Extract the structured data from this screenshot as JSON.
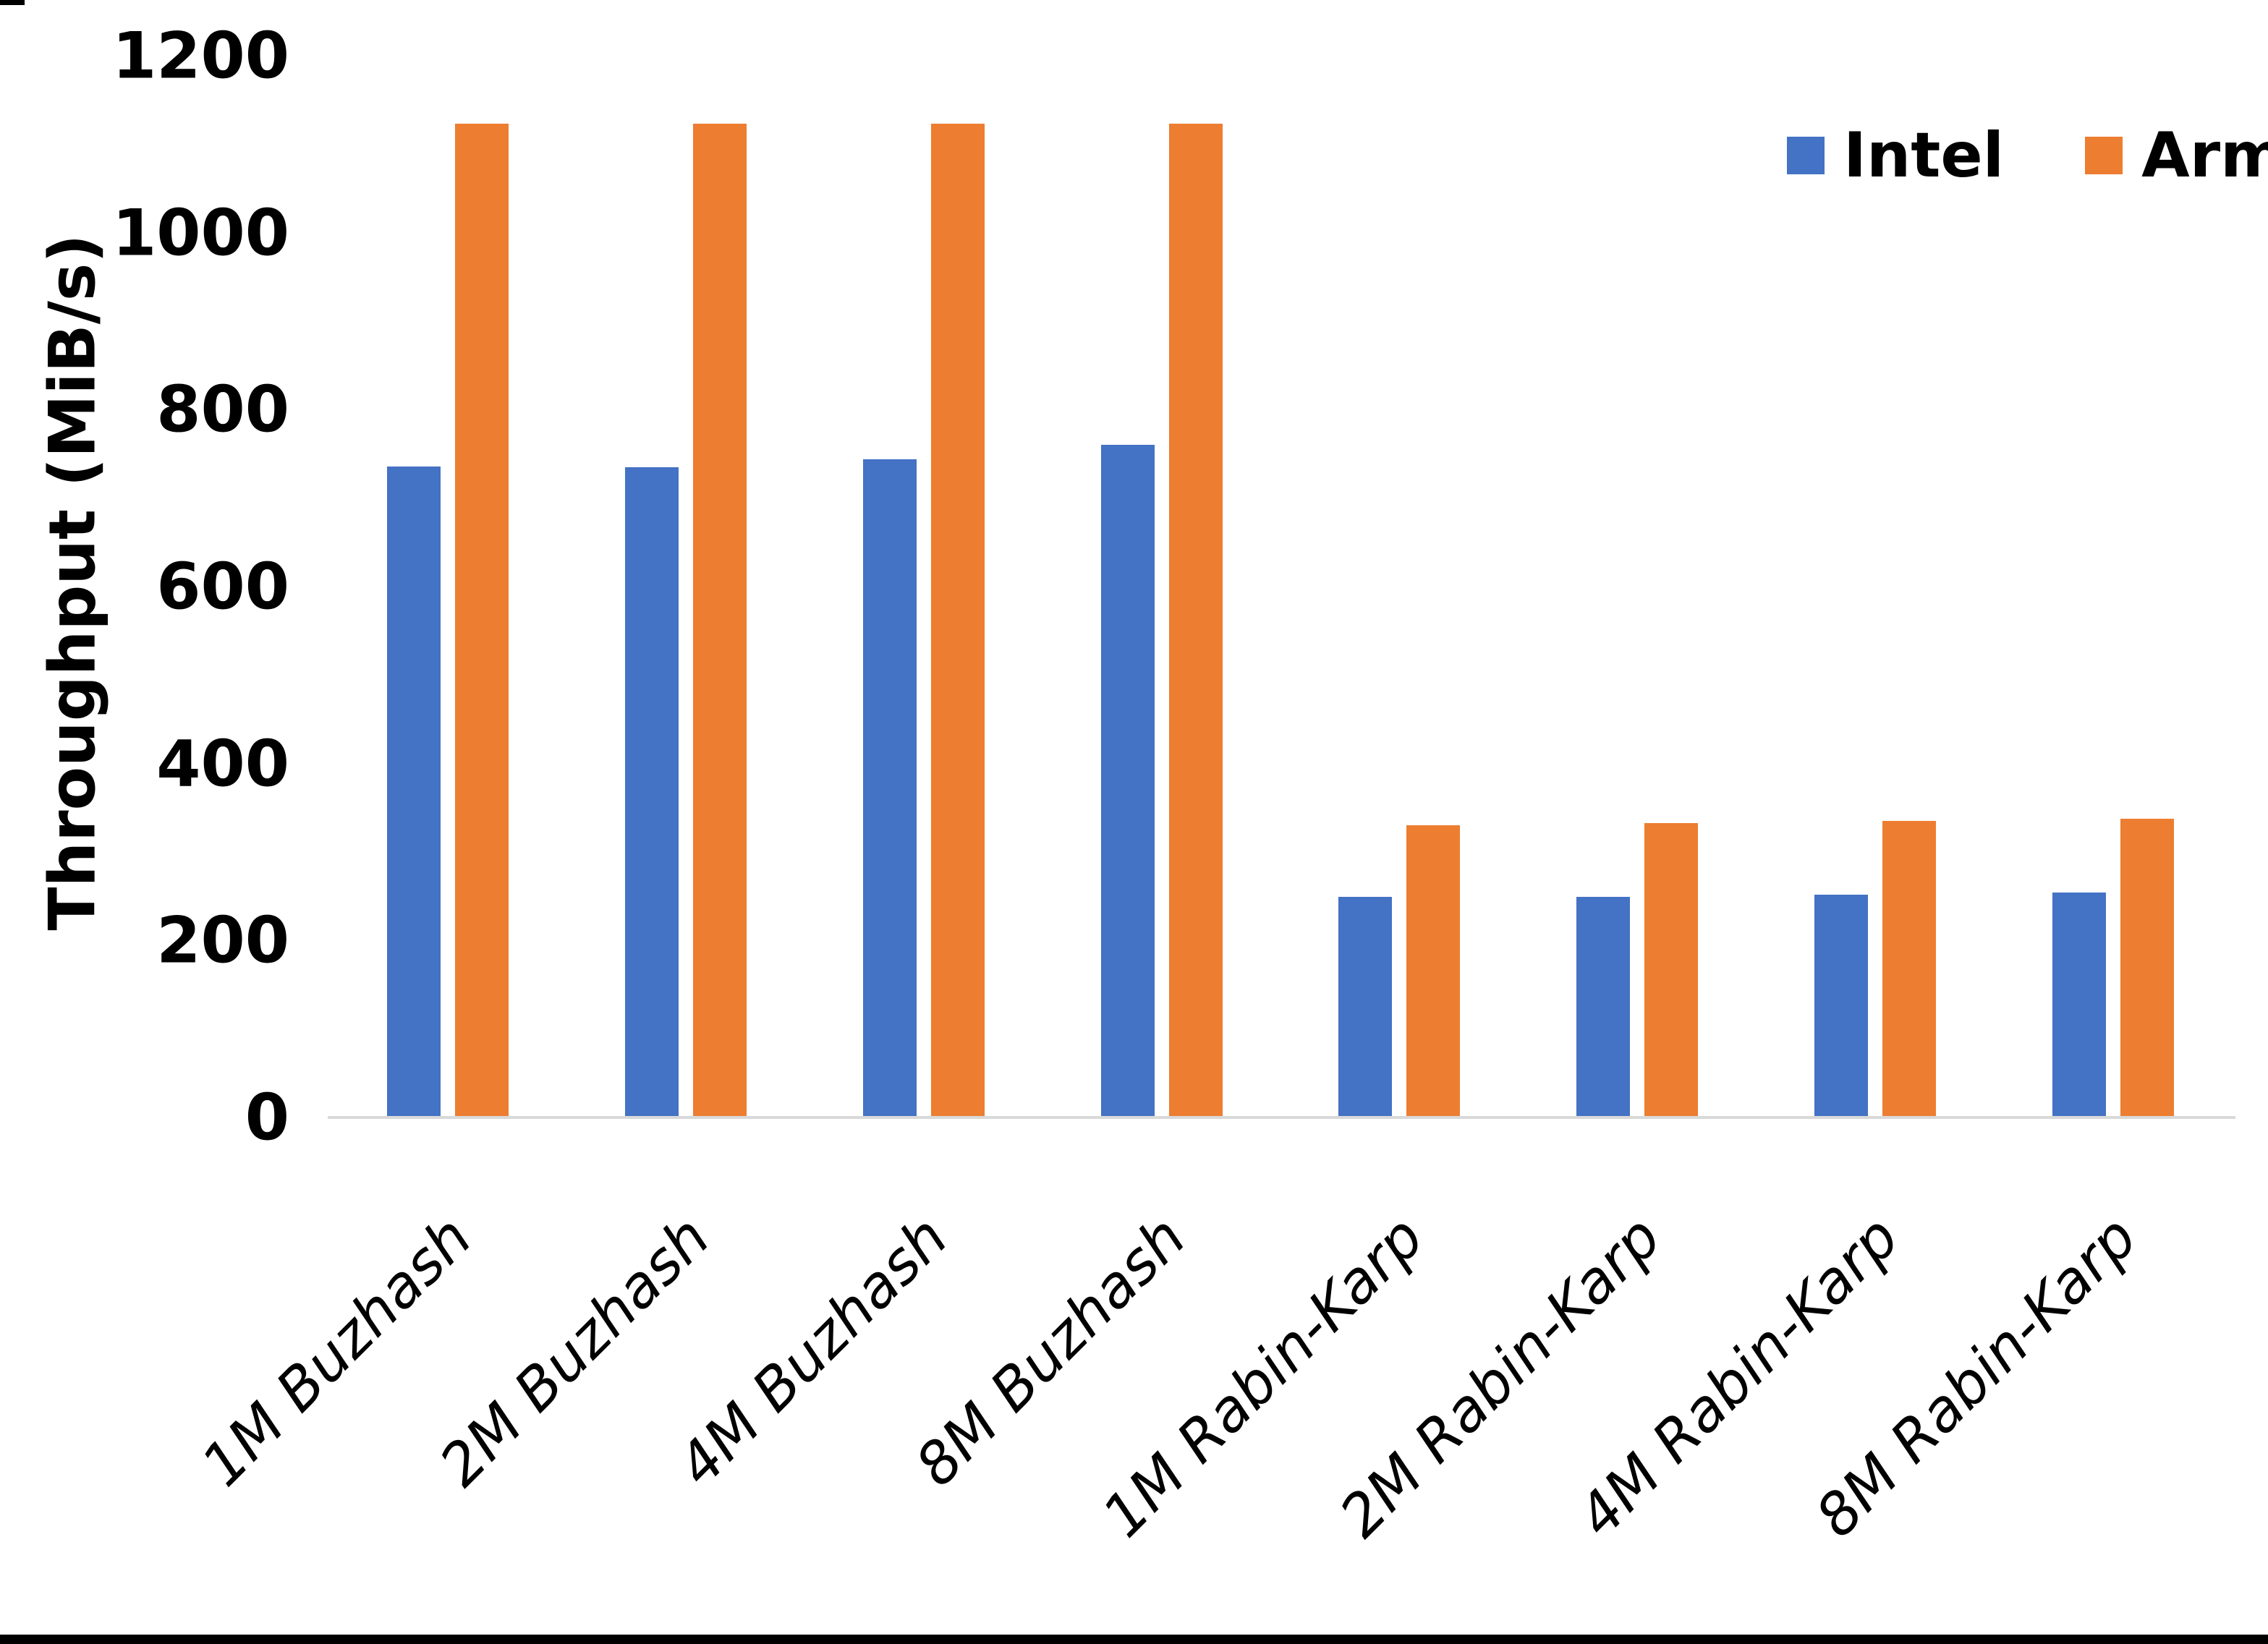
{
  "chart_data": {
    "type": "bar",
    "title": "",
    "xlabel": "",
    "ylabel": "Throughput (MiB/s)",
    "ylim": [
      0,
      1200
    ],
    "yticks": [
      0,
      200,
      400,
      600,
      800,
      1000,
      1200
    ],
    "grid": false,
    "legend_position": "top-right",
    "categories": [
      "1M Buzhash",
      "2M Buzhash",
      "4M Buzhash",
      "8M Buzhash",
      "1M Rabin-Karp",
      "2M Rabin-Karp",
      "4M Rabin-Karp",
      "8M Rabin-Karp"
    ],
    "series": [
      {
        "name": "Intel",
        "color": "#4472C4",
        "values": [
          736,
          735,
          744,
          760,
          249,
          249,
          252,
          254
        ]
      },
      {
        "name": "Arm",
        "color": "#ED7D31",
        "values": [
          1123,
          1123,
          1123,
          1123,
          330,
          333,
          335,
          338
        ]
      }
    ]
  },
  "axis": {
    "line_color": "#D9D9D9",
    "text_color": "#000000"
  },
  "page": {
    "background": "#FFFFFF",
    "frame_color": "#000000"
  }
}
